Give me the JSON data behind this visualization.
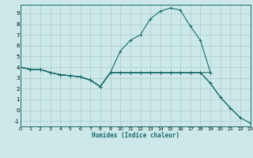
{
  "xlabel": "Humidex (Indice chaleur)",
  "bg_color": "#cce8e8",
  "grid_color": "#aacccc",
  "line_color": "#1a6b6b",
  "xlim": [
    0,
    23
  ],
  "ylim": [
    -1.5,
    9.8
  ],
  "xticks": [
    0,
    1,
    2,
    3,
    4,
    5,
    6,
    7,
    8,
    9,
    10,
    11,
    12,
    13,
    14,
    15,
    16,
    17,
    18,
    19,
    20,
    21,
    22,
    23
  ],
  "yticks": [
    -1,
    0,
    1,
    2,
    3,
    4,
    5,
    6,
    7,
    8,
    9
  ],
  "series": [
    {
      "x": [
        0,
        1,
        2,
        3,
        4,
        5,
        6,
        7,
        8,
        9,
        10,
        11,
        12,
        13,
        14,
        15,
        16,
        17,
        18,
        19
      ],
      "y": [
        4.0,
        3.8,
        3.8,
        3.5,
        3.3,
        3.2,
        3.1,
        2.8,
        2.2,
        3.5,
        5.5,
        6.5,
        7.0,
        8.5,
        9.2,
        9.5,
        9.3,
        7.8,
        6.5,
        3.5
      ]
    },
    {
      "x": [
        0,
        1,
        2,
        3,
        4,
        5,
        6,
        7,
        8,
        9,
        10,
        11,
        12,
        13,
        14,
        15,
        16,
        17,
        18,
        19
      ],
      "y": [
        4.0,
        3.8,
        3.8,
        3.5,
        3.3,
        3.2,
        3.1,
        2.8,
        2.2,
        3.5,
        3.5,
        3.5,
        3.5,
        3.5,
        3.5,
        3.5,
        3.5,
        3.5,
        3.5,
        3.5
      ]
    },
    {
      "x": [
        0,
        1,
        2,
        3,
        4,
        5,
        6,
        7,
        8,
        9,
        10,
        11,
        12,
        13,
        14,
        15,
        16,
        17,
        18,
        19,
        20,
        21,
        22
      ],
      "y": [
        4.0,
        3.8,
        3.8,
        3.5,
        3.3,
        3.2,
        3.1,
        2.8,
        2.2,
        3.5,
        3.5,
        3.5,
        3.5,
        3.5,
        3.5,
        3.5,
        3.5,
        3.5,
        3.5,
        2.5,
        1.2,
        0.2,
        -0.7
      ]
    },
    {
      "x": [
        0,
        1,
        2,
        3,
        4,
        5,
        6,
        7,
        8,
        9,
        10,
        11,
        12,
        13,
        14,
        15,
        16,
        17,
        18,
        19,
        20,
        21,
        22,
        23
      ],
      "y": [
        4.0,
        3.8,
        3.8,
        3.5,
        3.3,
        3.2,
        3.1,
        2.8,
        2.2,
        3.5,
        3.5,
        3.5,
        3.5,
        3.5,
        3.5,
        3.5,
        3.5,
        3.5,
        3.5,
        2.5,
        1.2,
        0.2,
        -0.7,
        -1.2
      ]
    }
  ]
}
